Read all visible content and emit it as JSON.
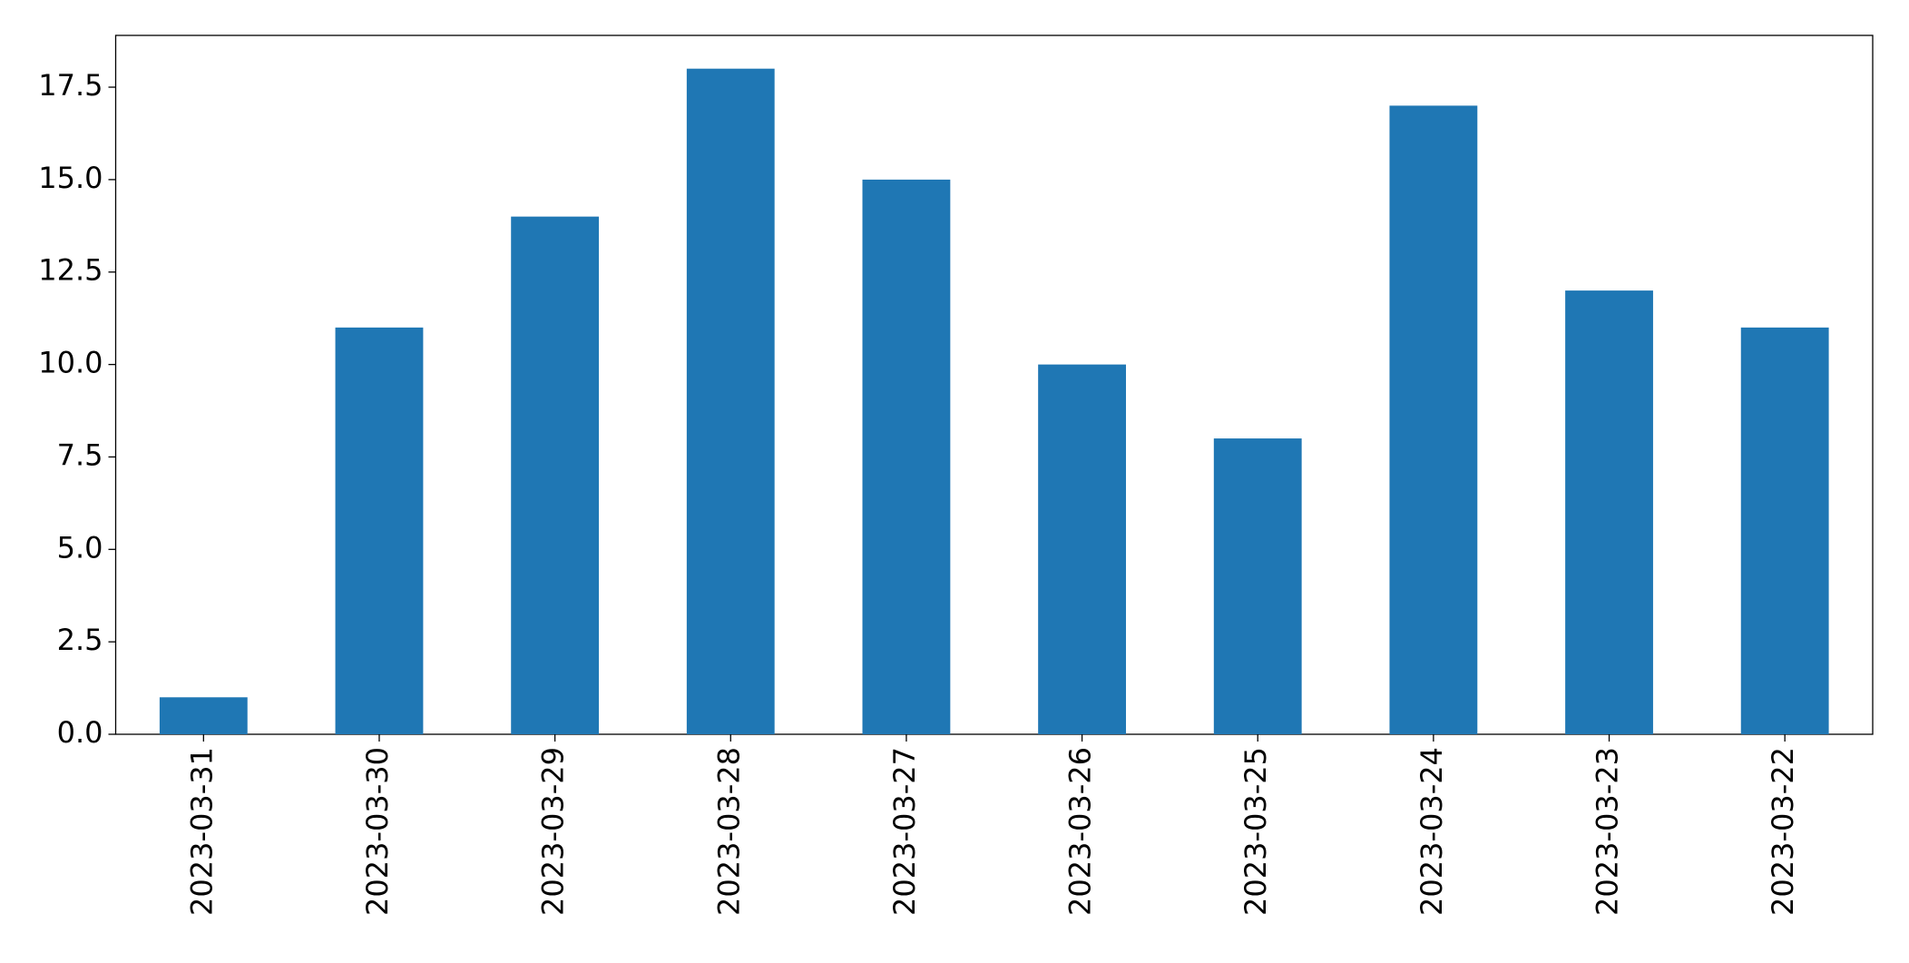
{
  "chart_data": {
    "type": "bar",
    "categories": [
      "2023-03-31",
      "2023-03-30",
      "2023-03-29",
      "2023-03-28",
      "2023-03-27",
      "2023-03-26",
      "2023-03-25",
      "2023-03-24",
      "2023-03-23",
      "2023-03-22"
    ],
    "values": [
      1,
      11,
      14,
      18,
      15,
      10,
      8,
      17,
      12,
      11
    ],
    "color": "#1f77b4",
    "ylim": [
      0,
      18.9
    ],
    "yticks": [
      {
        "value": 0,
        "label": "0.0"
      },
      {
        "value": 2.5,
        "label": "2.5"
      },
      {
        "value": 5,
        "label": "5.0"
      },
      {
        "value": 7.5,
        "label": "7.5"
      },
      {
        "value": 10,
        "label": "10.0"
      },
      {
        "value": 12.5,
        "label": "12.5"
      },
      {
        "value": 15,
        "label": "15.0"
      },
      {
        "value": 17.5,
        "label": "17.5"
      }
    ],
    "grid": false
  }
}
